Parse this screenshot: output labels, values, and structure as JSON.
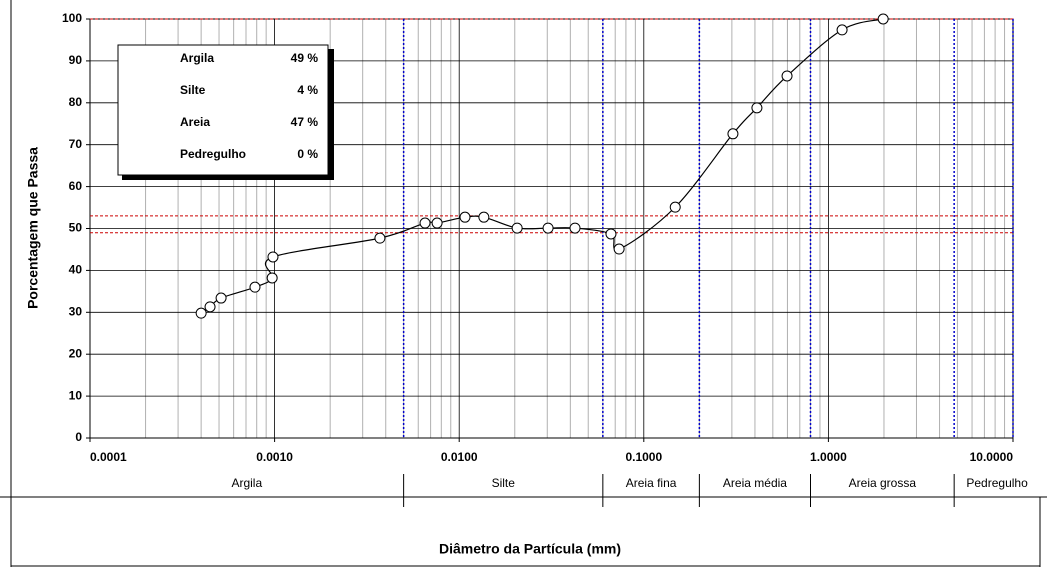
{
  "chart_data": {
    "type": "line",
    "x_label": "Diâmetro da Partícula (mm)",
    "y_label": "Porcentagem que Passa",
    "x": [
      0.0004,
      0.000447,
      0.000513,
      0.000783,
      0.00097,
      0.00098,
      0.00372,
      0.00653,
      0.00759,
      0.01075,
      0.0136,
      0.0206,
      0.0303,
      0.0424,
      0.0664,
      0.0735,
      0.148,
      0.304,
      0.41,
      0.597,
      1.186,
      1.98
    ],
    "values": [
      29.8,
      31.3,
      33.4,
      36.0,
      38.2,
      43.2,
      47.7,
      51.3,
      51.3,
      52.7,
      52.7,
      50.1,
      50.1,
      50.1,
      48.7,
      45.1,
      55.1,
      72.6,
      78.8,
      86.4,
      97.4,
      100
    ],
    "color": "#000000",
    "log_x": true,
    "grid": true,
    "xlim": [
      0.0001,
      10
    ],
    "ylim": [
      0,
      100
    ],
    "xticks": [
      0.0001,
      {
        "value": 0.001,
        "label": "0.0010"
      },
      {
        "value": 0.01,
        "label": "0.0100"
      },
      {
        "value": 0.1,
        "label": "0.1000"
      },
      {
        "value": 1,
        "label": "1.0000"
      },
      {
        "value": 10,
        "label": "10.0000"
      }
    ],
    "yticks": [
      0,
      10,
      20,
      30,
      40,
      50,
      60,
      70,
      80,
      90,
      100
    ],
    "reference_y": {
      "values": [
        49,
        53,
        100
      ],
      "color": "#cc0000"
    },
    "reference_x": {
      "values": [
        0.005,
        0.06,
        0.2,
        0.8,
        4.8,
        10
      ],
      "color": "#0000cc"
    },
    "bands": {
      "labels": [
        "Argila",
        "Silte",
        "Areia fina",
        "Areia média",
        "Areia grossa",
        "Pedregulho"
      ],
      "edges": [
        0.005,
        0.06,
        0.2,
        0.8,
        4.8
      ]
    },
    "composition": {
      "names": [
        "Argila",
        "Silte",
        "Areia",
        "Pedregulho"
      ],
      "values": [
        49,
        4,
        47,
        0
      ],
      "value_labels": [
        "49 %",
        "4 %",
        "47 %",
        "0 %"
      ]
    }
  }
}
